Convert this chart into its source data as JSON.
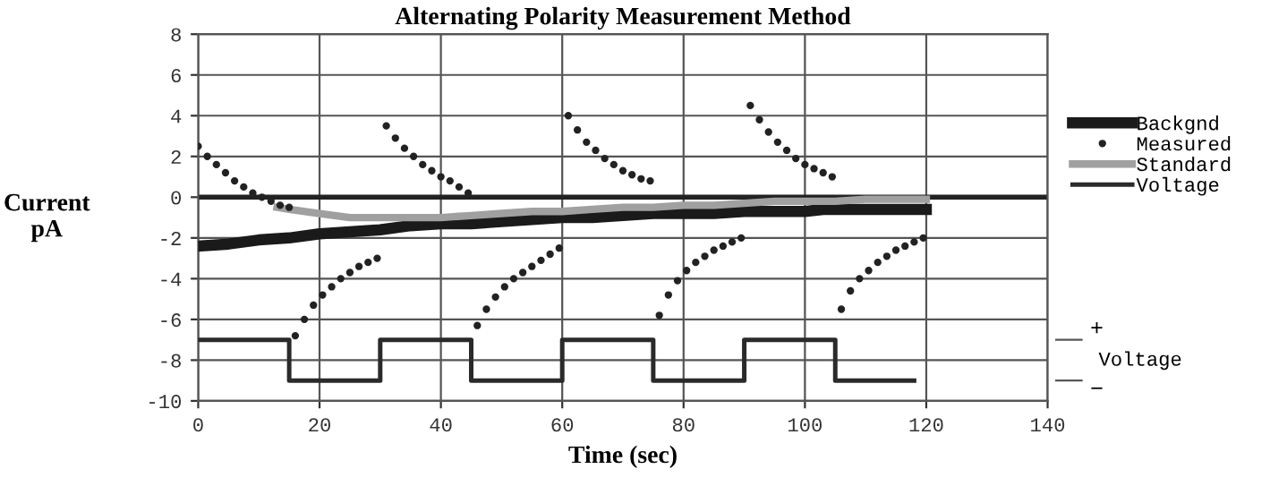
{
  "chart_data": {
    "type": "line",
    "title": "Alternating Polarity Measurement Method",
    "xlabel": "Time (sec)",
    "ylabel": "Current\npA",
    "xlim": [
      0,
      140
    ],
    "xticks": [
      0,
      20,
      40,
      60,
      80,
      100,
      120,
      140
    ],
    "ylim": [
      -10,
      8
    ],
    "yticks": [
      -10,
      -8,
      -6,
      -4,
      -2,
      0,
      2,
      4,
      6,
      8
    ],
    "grid": true,
    "legend": "right",
    "ref_lines": [
      {
        "axis": "y",
        "value": 0,
        "color": "#222222"
      }
    ],
    "series": [
      {
        "name": "Backgnd",
        "color": "#1a1a1a",
        "x": [
          0,
          5,
          10,
          15,
          20,
          25,
          30,
          35,
          40,
          45,
          50,
          55,
          60,
          65,
          70,
          75,
          80,
          85,
          90,
          95,
          100,
          103,
          105,
          110,
          115,
          120
        ],
        "values": [
          -2.4,
          -2.3,
          -2.1,
          -2.0,
          -1.8,
          -1.7,
          -1.6,
          -1.4,
          -1.3,
          -1.3,
          -1.2,
          -1.1,
          -1.0,
          -1.0,
          -0.9,
          -0.8,
          -0.8,
          -0.8,
          -0.7,
          -0.7,
          -0.7,
          -0.6,
          -0.6,
          -0.6,
          -0.6,
          -0.6
        ]
      },
      {
        "name": "Measured",
        "type": "scatter",
        "marker": "circle",
        "color": "#222222",
        "x": [
          0,
          1.5,
          3,
          4.5,
          6,
          7.5,
          9,
          10.5,
          12,
          13.5,
          15,
          16,
          17.5,
          19,
          20.5,
          22,
          23.5,
          25,
          26.5,
          28,
          29.5,
          31,
          32.5,
          34,
          35.5,
          37,
          38.5,
          40,
          41.5,
          43,
          44.5,
          46,
          47.5,
          49,
          50.5,
          52,
          53.5,
          55,
          56.5,
          58,
          59.5,
          61,
          62.5,
          64,
          65.5,
          67,
          68.5,
          70,
          71.5,
          73,
          74.5,
          76,
          77.5,
          79,
          80.5,
          82,
          83.5,
          85,
          86.5,
          88,
          89.5,
          91,
          92.5,
          94,
          95.5,
          97,
          98.5,
          100,
          101.5,
          103,
          104.5,
          106,
          107.5,
          109,
          110.5,
          112,
          113.5,
          115,
          116.5,
          118,
          119.5
        ],
        "values": [
          2.5,
          2.0,
          1.6,
          1.2,
          0.8,
          0.5,
          0.2,
          0.0,
          -0.2,
          -0.4,
          -0.5,
          -6.8,
          -6.0,
          -5.3,
          -4.8,
          -4.4,
          -4.0,
          -3.7,
          -3.4,
          -3.2,
          -3.0,
          3.5,
          2.9,
          2.4,
          2.0,
          1.6,
          1.3,
          1.0,
          0.8,
          0.5,
          0.2,
          -6.3,
          -5.5,
          -4.9,
          -4.4,
          -4.0,
          -3.7,
          -3.4,
          -3.1,
          -2.8,
          -2.5,
          4.0,
          3.3,
          2.7,
          2.3,
          1.9,
          1.6,
          1.3,
          1.1,
          0.9,
          0.8,
          -5.8,
          -4.8,
          -4.1,
          -3.6,
          -3.2,
          -2.9,
          -2.6,
          -2.4,
          -2.2,
          -2.0,
          4.5,
          3.8,
          3.2,
          2.7,
          2.3,
          1.9,
          1.6,
          1.4,
          1.2,
          1.0,
          -5.5,
          -4.6,
          -4.0,
          -3.6,
          -3.2,
          -2.9,
          -2.6,
          -2.4,
          -2.2,
          -2.0
        ]
      },
      {
        "name": "Standard",
        "color": "#a0a0a0",
        "x": [
          13,
          15,
          20,
          25,
          30,
          35,
          40,
          45,
          50,
          55,
          60,
          65,
          70,
          75,
          80,
          85,
          90,
          95,
          100,
          105,
          110,
          115,
          120
        ],
        "values": [
          -0.5,
          -0.6,
          -0.8,
          -1.0,
          -1.0,
          -1.0,
          -1.0,
          -0.9,
          -0.8,
          -0.7,
          -0.7,
          -0.6,
          -0.5,
          -0.5,
          -0.4,
          -0.4,
          -0.3,
          -0.2,
          -0.2,
          -0.2,
          -0.1,
          -0.1,
          -0.1
        ]
      },
      {
        "name": "Voltage",
        "type": "step",
        "color": "#2a2a2a",
        "x": [
          0,
          15,
          30,
          45,
          60,
          75,
          90,
          105,
          118
        ],
        "values": [
          -7,
          -9,
          -7,
          -9,
          -7,
          -9,
          -7,
          -9,
          -9
        ]
      }
    ],
    "annotations": [
      "+",
      "Voltage",
      "−"
    ]
  }
}
